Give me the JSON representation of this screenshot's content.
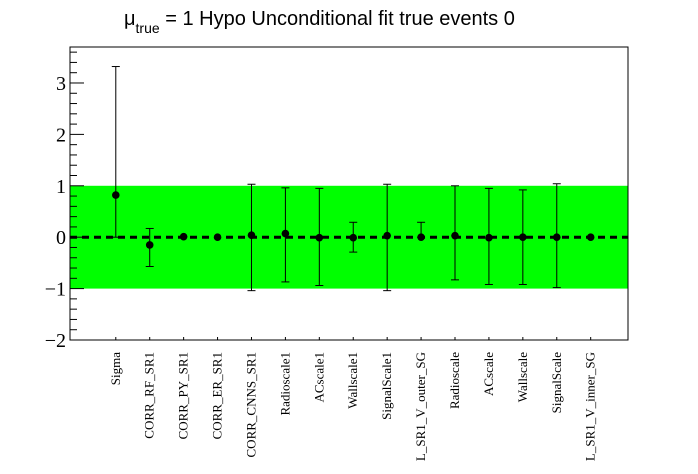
{
  "chart_data": {
    "type": "scatter",
    "title": {
      "mu_symbol": "μ",
      "mu_subscript": "true",
      "rest": " = 1 Hypo Unconditional fit true events 0"
    },
    "xlabel": "",
    "ylabel": "",
    "ylim": [
      -2,
      3.7
    ],
    "yticks": [
      -2,
      -1,
      0,
      1,
      2,
      3
    ],
    "ytick_labels": [
      "−2",
      "−1",
      "0",
      "1",
      "2",
      "3"
    ],
    "band": {
      "low": -1,
      "high": 1,
      "color": "#00ff00"
    },
    "reference_line": {
      "y": 0,
      "style": "dashed"
    },
    "grid": false,
    "legend": "none",
    "categories": [
      "Sigma",
      "CORR_RF_SR1",
      "CORR_PY_SR1",
      "CORR_ER_SR1",
      "CORR_CNNS_SR1",
      "Radioscale1",
      "ACscale1",
      "Wallscale1",
      "SignalScale1",
      "L_SR1_V_outer_SG",
      "Radioscale",
      "ACscale",
      "Wallscale",
      "SignalScale",
      "L_SR1_V_inner_SG"
    ],
    "values": [
      0.82,
      -0.15,
      0.01,
      0.0,
      0.04,
      0.07,
      -0.01,
      -0.01,
      0.03,
      0.0,
      0.03,
      -0.01,
      0.0,
      0.0,
      0.0
    ],
    "err_low": [
      0.82,
      0.42,
      0.0,
      0.0,
      1.08,
      0.94,
      0.93,
      0.28,
      1.07,
      0.0,
      0.86,
      0.91,
      0.92,
      0.98,
      0.0
    ],
    "err_high": [
      2.5,
      0.32,
      0.0,
      0.0,
      0.99,
      0.89,
      0.96,
      0.3,
      1.0,
      0.29,
      0.97,
      0.96,
      0.92,
      1.04,
      0.0
    ],
    "colors": {
      "marker": "#000000",
      "band": "#00ff00",
      "line": "#000000"
    }
  }
}
